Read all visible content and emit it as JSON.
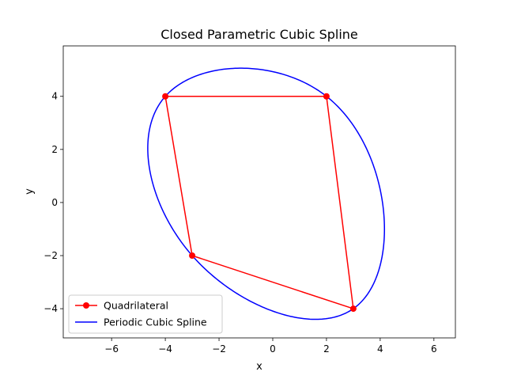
{
  "chart_data": {
    "type": "line",
    "title": "Closed Parametric Cubic Spline",
    "xlabel": "x",
    "ylabel": "y",
    "xlim": [
      -7.8,
      6.8
    ],
    "ylim": [
      -5.1,
      5.9
    ],
    "xticks": [
      -6,
      -4,
      -2,
      0,
      2,
      4,
      6
    ],
    "yticks": [
      -4,
      -2,
      0,
      2,
      4
    ],
    "xtick_labels": [
      "−6",
      "−4",
      "−2",
      "0",
      "2",
      "4",
      "6"
    ],
    "ytick_labels": [
      "−4",
      "−2",
      "0",
      "2",
      "4"
    ],
    "grid": false,
    "legend_position": "lower-left",
    "series": [
      {
        "name": "Quadrilateral",
        "color": "#ff0000",
        "marker": "circle",
        "points": [
          [
            -4,
            4
          ],
          [
            2,
            4
          ],
          [
            3,
            -4
          ],
          [
            -3,
            -2
          ],
          [
            -4,
            4
          ]
        ]
      },
      {
        "name": "Periodic Cubic Spline",
        "color": "#0000ff",
        "marker": "none",
        "control_points": [
          [
            -4,
            4
          ],
          [
            2,
            4
          ],
          [
            3,
            -4
          ],
          [
            -3,
            -2
          ]
        ]
      }
    ]
  }
}
